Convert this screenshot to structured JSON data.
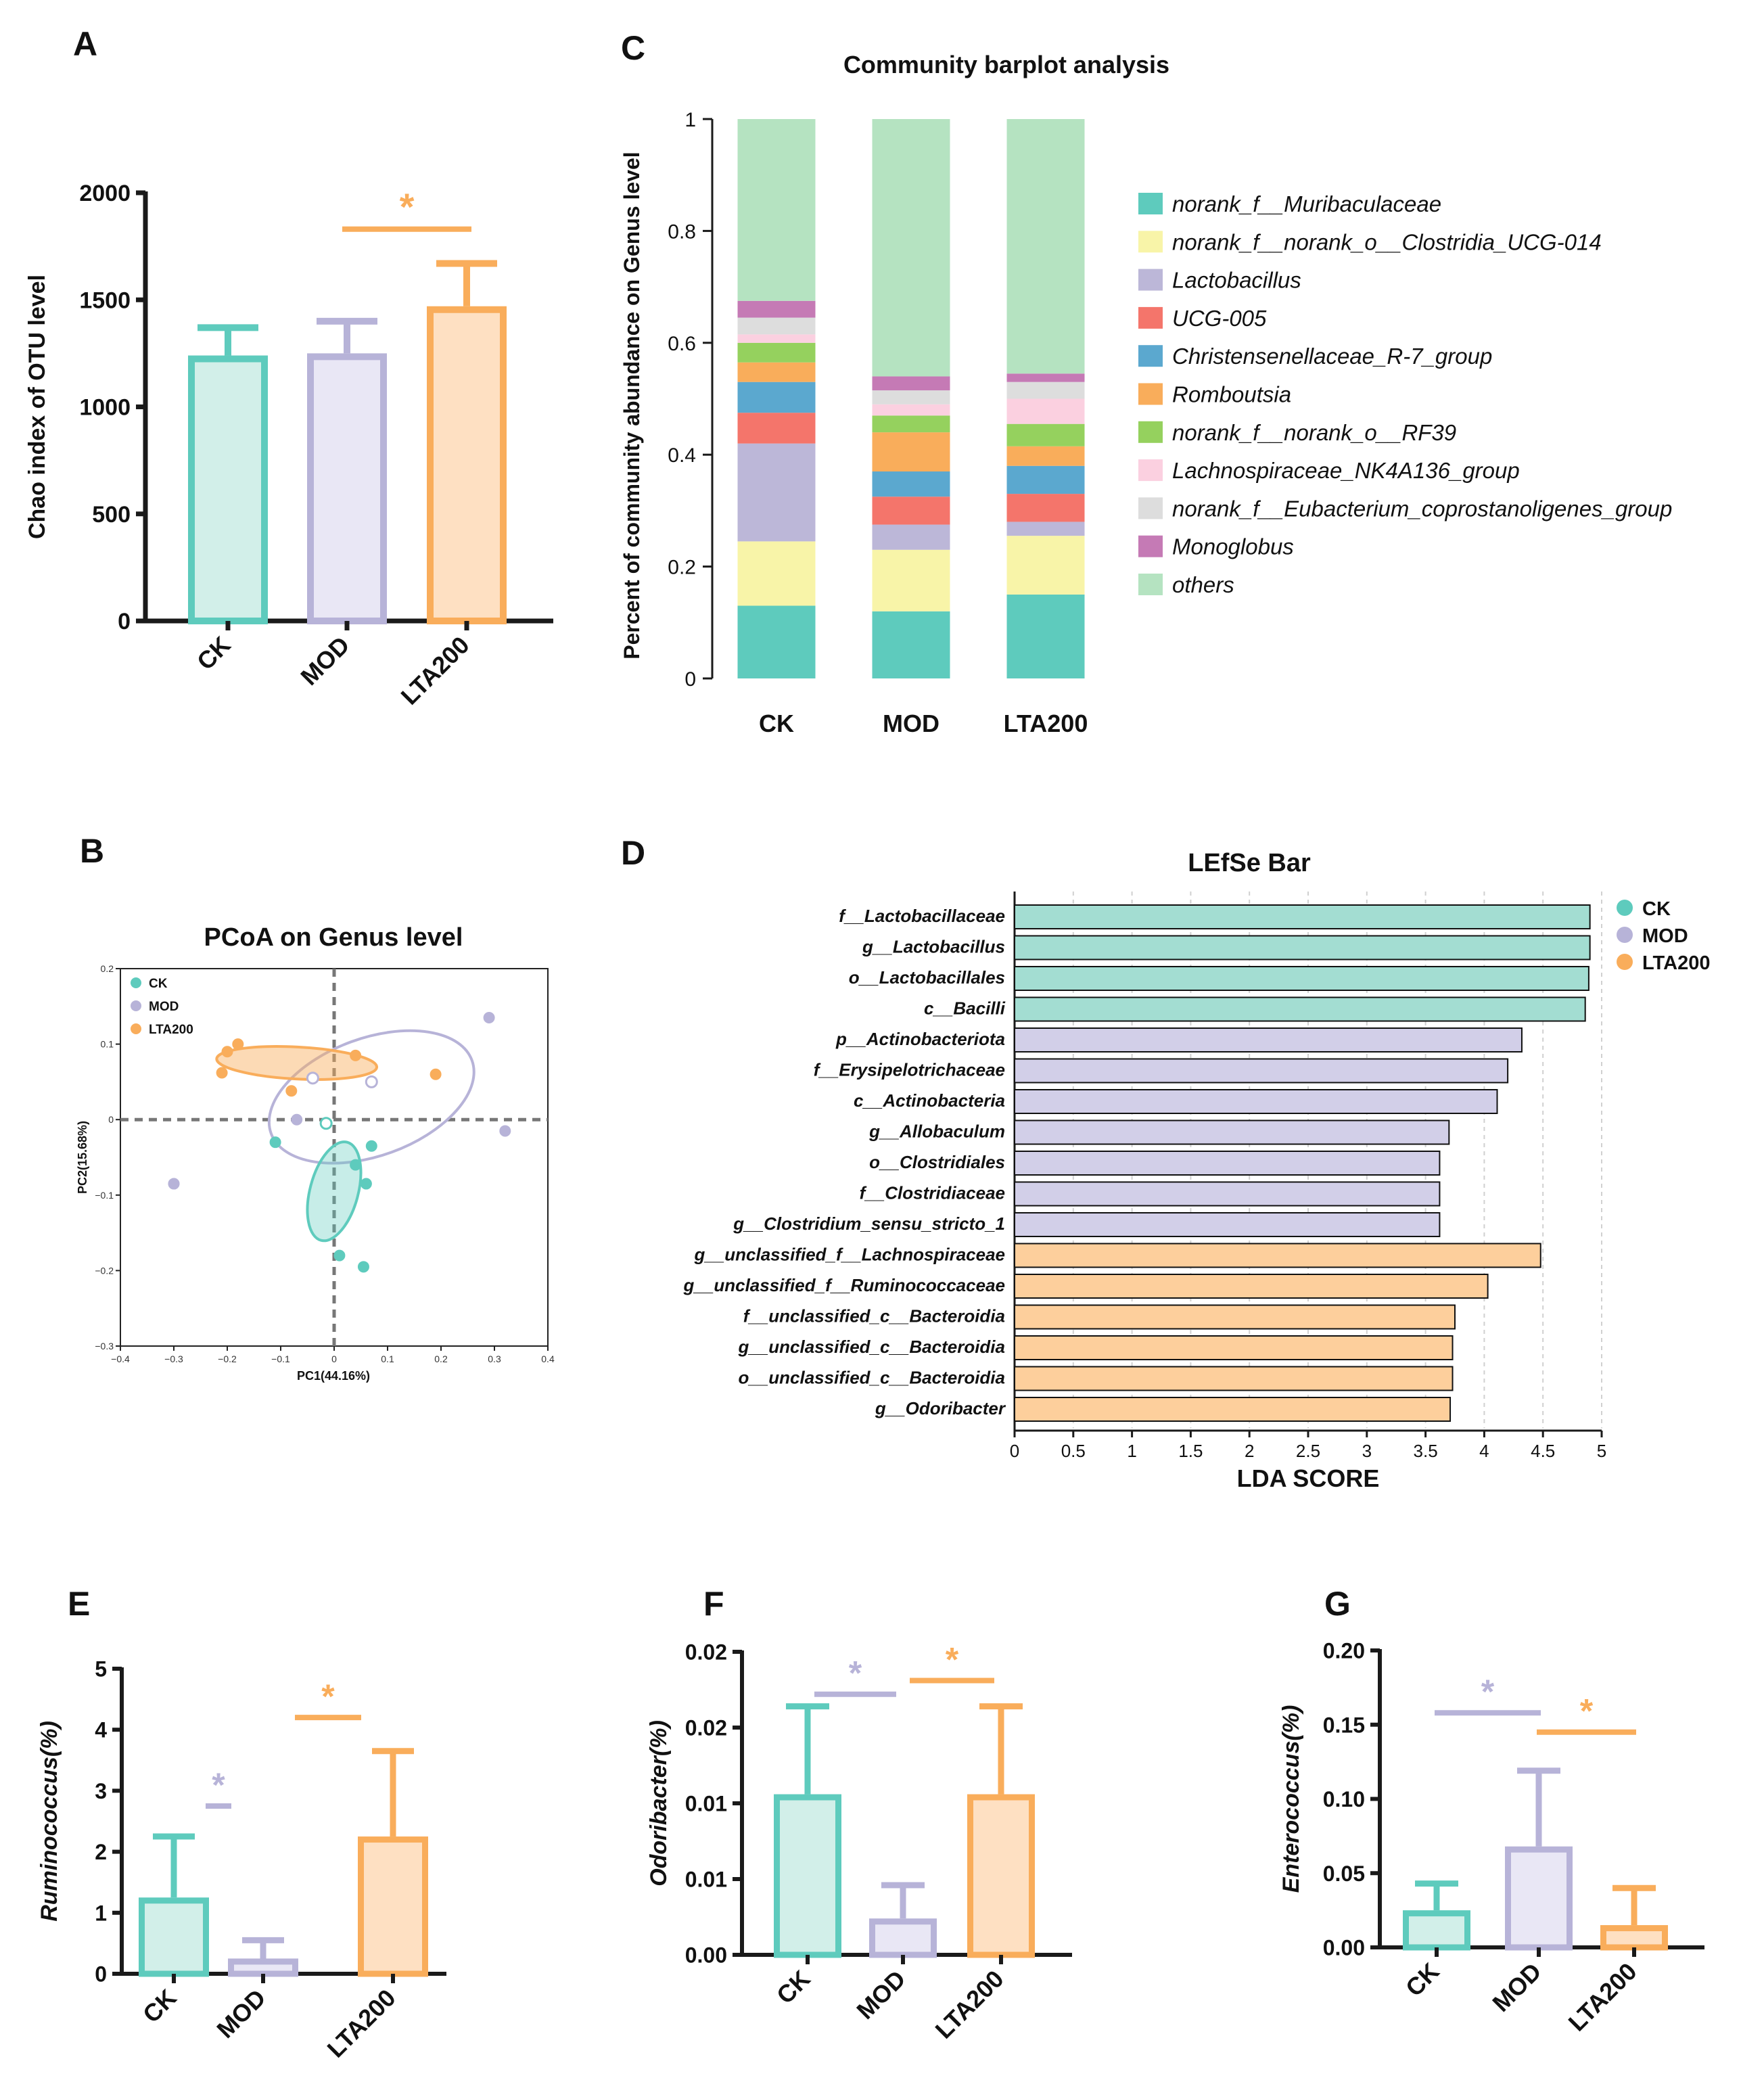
{
  "panel_letters": [
    "A",
    "B",
    "C",
    "D",
    "E",
    "F",
    "G"
  ],
  "colors": {
    "ck": "#5ecbbd",
    "ck_fill": "#d2efe9",
    "mod": "#b7b3d8",
    "mod_fill": "#e9e7f5",
    "lta": "#f9ad5b",
    "lta_fill": "#fee0c2",
    "axis": "#1a1a1a"
  },
  "chart_data": [
    {
      "id": "A",
      "type": "bar",
      "title": "",
      "ylabel": "Chao index of OTU level",
      "categories": [
        "CK",
        "MOD",
        "LTA200"
      ],
      "values": [
        1240,
        1250,
        1470
      ],
      "errors": [
        130,
        150,
        200
      ],
      "ylim": [
        0,
        2000
      ],
      "yticks": [
        0,
        500,
        1000,
        1500,
        2000
      ],
      "ytick_labels": [
        "0",
        "500",
        "1000",
        "1500",
        "2000"
      ],
      "significance": [
        {
          "from": 1,
          "to": 2,
          "label": "*",
          "y": 1830,
          "color": "lta"
        }
      ]
    },
    {
      "id": "B",
      "type": "scatter",
      "title": "PCoA on Genus level",
      "xlabel": "PC1(44.16%)",
      "ylabel": "PC2(15.68%)",
      "xlim": [
        -0.4,
        0.4
      ],
      "ylim": [
        -0.3,
        0.2
      ],
      "xticks": [
        -0.4,
        -0.3,
        -0.2,
        -0.1,
        0,
        0.1,
        0.2,
        0.3,
        0.4
      ],
      "xtick_labels": [
        "−0.4",
        "−0.3",
        "−0.2",
        "−0.1",
        "0",
        "0.1",
        "0.2",
        "0.3",
        "0.4"
      ],
      "yticks": [
        -0.3,
        -0.2,
        -0.1,
        0,
        0.1,
        0.2
      ],
      "ytick_labels": [
        "−0.3",
        "−0.2",
        "−0.1",
        "0",
        "0.1",
        "0.2"
      ],
      "legend": [
        "CK",
        "MOD",
        "LTA200"
      ],
      "series": [
        {
          "name": "CK",
          "color": "ck",
          "hollow": [
            false,
            false,
            false,
            false,
            false,
            false,
            true
          ],
          "x": [
            -0.11,
            0.07,
            0.04,
            0.06,
            0.01,
            0.055,
            -0.015
          ],
          "y": [
            -0.03,
            -0.035,
            -0.06,
            -0.085,
            -0.18,
            -0.195,
            -0.005
          ],
          "ellipse": {
            "cx": 0.0,
            "cy": -0.095,
            "rx": 0.095,
            "ry": 0.045,
            "angle": 75
          }
        },
        {
          "name": "MOD",
          "color": "mod",
          "hollow": [
            false,
            true,
            true,
            false,
            false,
            false,
            false
          ],
          "x": [
            0.29,
            -0.04,
            0.07,
            -0.07,
            0.32,
            -0.3,
            -0.3
          ],
          "y": [
            0.135,
            0.055,
            0.05,
            0.0,
            -0.015,
            -0.085,
            -0.085
          ],
          "ellipse": {
            "cx": 0.07,
            "cy": 0.03,
            "rx": 0.2,
            "ry": 0.11,
            "angle": 20
          }
        },
        {
          "name": "LTA200",
          "color": "lta",
          "hollow": [
            false,
            false,
            false,
            false,
            false,
            false
          ],
          "x": [
            -0.18,
            -0.2,
            -0.21,
            -0.08,
            0.04,
            0.19
          ],
          "y": [
            0.1,
            0.09,
            0.062,
            0.038,
            0.085,
            0.06
          ],
          "ellipse": {
            "cx": -0.07,
            "cy": 0.075,
            "rx": 0.15,
            "ry": 0.03,
            "angle": -3
          }
        }
      ]
    },
    {
      "id": "C",
      "type": "bar",
      "stacked": true,
      "title": "Community barplot analysis",
      "ylabel": "Percent of community abundance on Genus level",
      "categories": [
        "CK",
        "MOD",
        "LTA200"
      ],
      "ylim": [
        0,
        1
      ],
      "yticks": [
        0,
        0.2,
        0.4,
        0.6,
        0.8,
        1
      ],
      "ytick_labels": [
        "0",
        "0.2",
        "0.4",
        "0.6",
        "0.8",
        "1"
      ],
      "series": [
        {
          "name": "norank_f__Muribaculaceae",
          "color": "#5ecbbd",
          "values": [
            0.13,
            0.12,
            0.15
          ]
        },
        {
          "name": "norank_f__norank_o__Clostridia_UCG-014",
          "color": "#f8f4a8",
          "values": [
            0.115,
            0.11,
            0.105
          ]
        },
        {
          "name": "Lactobacillus",
          "color": "#bcb7d8",
          "values": [
            0.175,
            0.045,
            0.025
          ]
        },
        {
          "name": "UCG-005",
          "color": "#f4756b",
          "values": [
            0.055,
            0.05,
            0.05
          ]
        },
        {
          "name": "Christensenellaceae_R-7_group",
          "color": "#5ba8cf",
          "values": [
            0.055,
            0.045,
            0.05
          ]
        },
        {
          "name": "Romboutsia",
          "color": "#f9ad5b",
          "values": [
            0.035,
            0.07,
            0.035
          ]
        },
        {
          "name": "norank_f__norank_o__RF39",
          "color": "#95d15e",
          "values": [
            0.035,
            0.03,
            0.04
          ]
        },
        {
          "name": "Lachnospiraceae_NK4A136_group",
          "color": "#fbd0e0",
          "values": [
            0.015,
            0.02,
            0.045
          ]
        },
        {
          "name": "norank_f__Eubacterium_coprostanoligenes_group",
          "color": "#dddddd",
          "values": [
            0.03,
            0.025,
            0.03
          ]
        },
        {
          "name": "Monoglobus",
          "color": "#c57ab5",
          "values": [
            0.03,
            0.025,
            0.015
          ]
        },
        {
          "name": "others",
          "color": "#b5e3c1",
          "values": [
            0.325,
            0.46,
            0.455
          ]
        }
      ]
    },
    {
      "id": "D",
      "type": "bar",
      "orientation": "horizontal",
      "title": "LEfSe Bar",
      "xlabel": "LDA SCORE",
      "xlim": [
        0,
        5
      ],
      "xticks": [
        0,
        0.5,
        1,
        1.5,
        2,
        2.5,
        3,
        3.5,
        4,
        4.5,
        5
      ],
      "xtick_labels": [
        "0",
        "0.5",
        "1",
        "1.5",
        "2",
        "2.5",
        "3",
        "3.5",
        "4",
        "4.5",
        "5"
      ],
      "legend": [
        "CK",
        "MOD",
        "LTA200"
      ],
      "categories": [
        "f__Lactobacillaceae",
        "g__Lactobacillus",
        "o__Lactobacillales",
        "c__Bacilli",
        "p__Actinobacteriota",
        "f__Erysipelotrichaceae",
        "c__Actinobacteria",
        "g__Allobaculum",
        "o__Clostridiales",
        "f__Clostridiaceae",
        "g__Clostridium_sensu_stricto_1",
        "g__unclassified_f__Lachnospiraceae",
        "g__unclassified_f__Ruminococcaceae",
        "f__unclassified_c__Bacteroidia",
        "g__unclassified_c__Bacteroidia",
        "o__unclassified_c__Bacteroidia",
        "g__Odoribacter"
      ],
      "values": [
        4.9,
        4.9,
        4.89,
        4.86,
        4.32,
        4.2,
        4.11,
        3.7,
        3.62,
        3.62,
        3.62,
        4.48,
        4.03,
        3.75,
        3.73,
        3.73,
        3.71
      ],
      "groups": [
        "CK",
        "CK",
        "CK",
        "CK",
        "MOD",
        "MOD",
        "MOD",
        "MOD",
        "MOD",
        "MOD",
        "MOD",
        "LTA200",
        "LTA200",
        "LTA200",
        "LTA200",
        "LTA200",
        "LTA200"
      ]
    },
    {
      "id": "E",
      "type": "bar",
      "ylabel": "Ruminococcus(%)",
      "categories": [
        "CK",
        "MOD",
        "LTA200"
      ],
      "values": [
        1.25,
        0.25,
        2.25
      ],
      "errors": [
        1.0,
        0.3,
        1.4
      ],
      "ylim": [
        0,
        5
      ],
      "yticks": [
        0,
        1,
        2,
        3,
        4,
        5
      ],
      "ytick_labels": [
        "0",
        "1",
        "2",
        "3",
        "4",
        "5"
      ],
      "significance": [
        {
          "from": 0,
          "to": 1,
          "label": "*",
          "y": 2.75,
          "color": "mod"
        },
        {
          "from": 1,
          "to": 2,
          "label": "*",
          "y": 4.2,
          "color": "lta"
        }
      ]
    },
    {
      "id": "F",
      "type": "bar",
      "ylabel": "Odoribacter(%)",
      "categories": [
        "CK",
        "MOD",
        "LTA200"
      ],
      "values": [
        0.0106,
        0.0024,
        0.0106
      ],
      "errors": [
        0.0058,
        0.0022,
        0.0058
      ],
      "ylim": [
        0,
        0.02
      ],
      "yticks": [
        0,
        0.005,
        0.01,
        0.015,
        0.02
      ],
      "ytick_labels": [
        "0.00",
        "0.01",
        "0.01",
        "0.02",
        "0.02"
      ],
      "significance": [
        {
          "from": 0,
          "to": 1,
          "label": "*",
          "y": 0.0172,
          "color": "mod"
        },
        {
          "from": 1,
          "to": 2,
          "label": "*",
          "y": 0.0181,
          "color": "lta"
        }
      ]
    },
    {
      "id": "G",
      "type": "bar",
      "ylabel": "Enterococcus(%)",
      "categories": [
        "CK",
        "MOD",
        "LTA200"
      ],
      "values": [
        0.025,
        0.068,
        0.015
      ],
      "errors": [
        0.018,
        0.051,
        0.025
      ],
      "ylim": [
        0,
        0.2
      ],
      "yticks": [
        0,
        0.05,
        0.1,
        0.15,
        0.2
      ],
      "ytick_labels": [
        "0.00",
        "0.05",
        "0.10",
        "0.15",
        "0.20"
      ],
      "significance": [
        {
          "from": 0,
          "to": 1,
          "label": "*",
          "y": 0.158,
          "color": "mod"
        },
        {
          "from": 1,
          "to": 2,
          "label": "*",
          "y": 0.145,
          "color": "lta"
        }
      ]
    }
  ]
}
